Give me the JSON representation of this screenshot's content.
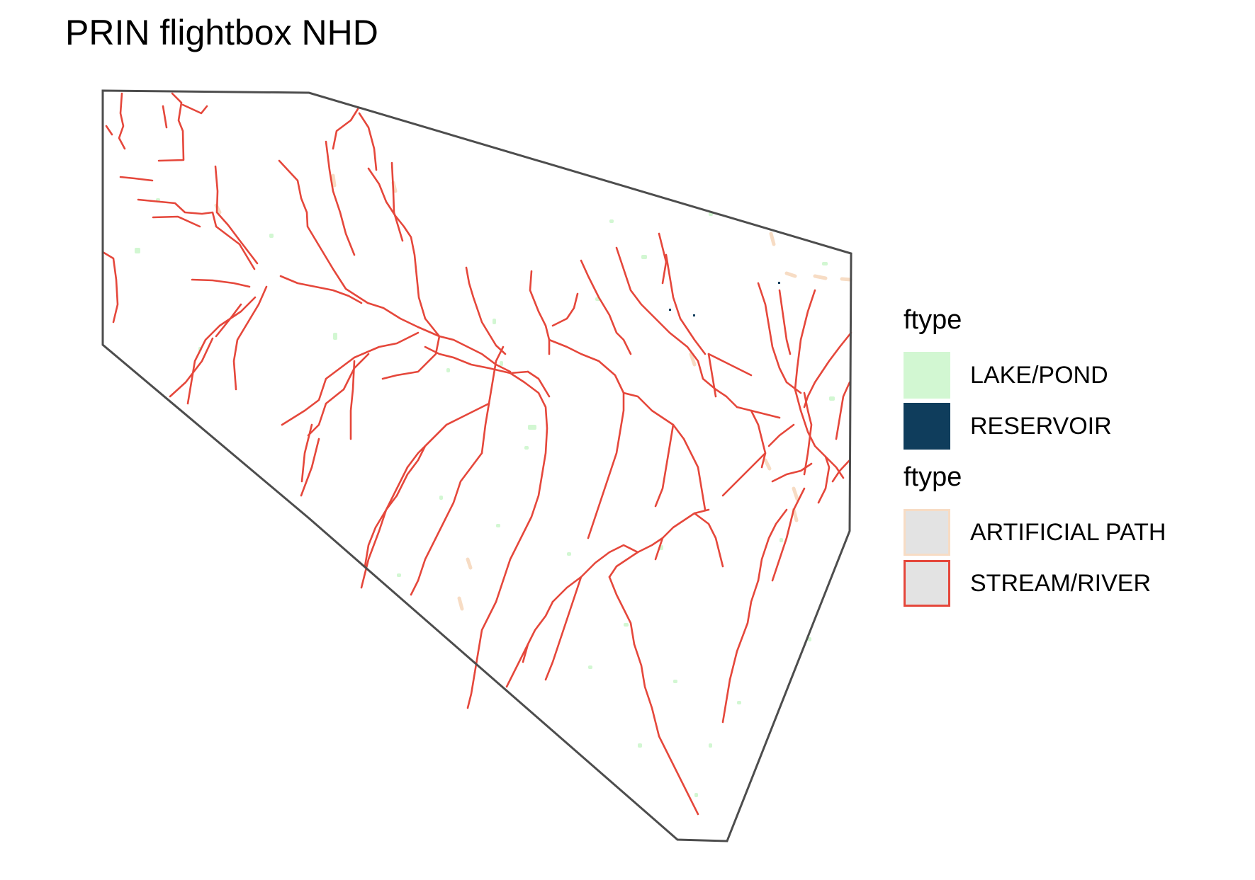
{
  "title": "PRIN flightbox NHD",
  "map": {
    "boundary_color": "#4d4d4d",
    "stream_color": "#e5473b",
    "artificial_path_color": "#f7dcc4",
    "lake_color": "#d2f7d2",
    "reservoir_color": "#0f3d5c"
  },
  "legend": {
    "waterbody": {
      "title": "ftype",
      "items": [
        {
          "label": "LAKE/POND",
          "fill": "#d2f7d2",
          "icon": "filled-square"
        },
        {
          "label": "RESERVOIR",
          "fill": "#0f3d5c",
          "icon": "filled-square"
        }
      ]
    },
    "flowline": {
      "title": "ftype",
      "items": [
        {
          "label": "ARTIFICIAL PATH",
          "stroke": "#f7dcc4",
          "icon": "outlined-square"
        },
        {
          "label": "STREAM/RIVER",
          "stroke": "#e5473b",
          "icon": "outlined-square"
        }
      ]
    }
  }
}
